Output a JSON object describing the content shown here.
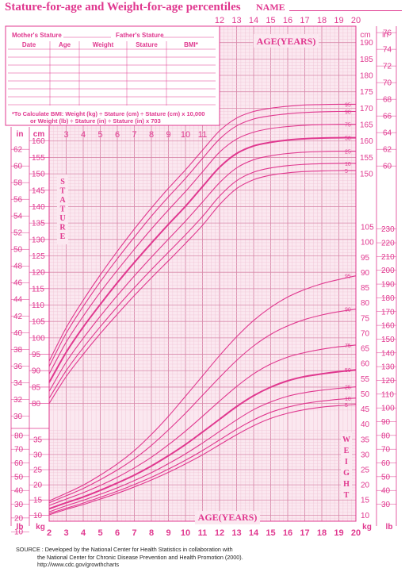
{
  "header": {
    "title": "Stature-for-age and Weight-for-age percentiles",
    "name_label": "NAME"
  },
  "record_table": {
    "mother_label": "Mother's Stature",
    "father_label": "Father's Stature",
    "columns": [
      "Date",
      "Age",
      "Weight",
      "Stature",
      "BMI*"
    ],
    "bmi_note_line1": "*To Calculate BMI: Weight (kg) ÷ Stature (cm) ÷ Stature (cm) x 10,000",
    "bmi_note_line2": "or Weight (lb) ÷ Stature (in) ÷ Stature (in) x 703"
  },
  "labels": {
    "age_years": "AGE(YEARS)",
    "stature_word": "STATURE",
    "weight_word": "WEIGHT",
    "unit_cm": "cm",
    "unit_in": "in",
    "unit_kg": "kg",
    "unit_lb": "lb"
  },
  "source": {
    "line1": "SOURCE : Developed by the National Center for Health Statistics in collaboration with",
    "line2": "the National Center for Chronic Disease Prevention and Health Promotion (2000).",
    "line3": "http://www.cdc.gov/growthcharts"
  },
  "chart_data": [
    {
      "type": "line",
      "title": "Stature-for-age percentiles",
      "xlabel": "AGE(YEARS)",
      "ylabel": "STATURE",
      "x_unit": "years",
      "y_unit": "cm",
      "xlim": [
        2,
        20
      ],
      "ylim": [
        77,
        195
      ],
      "grid": true,
      "x_ticks_bottom": [
        "2",
        "3",
        "4",
        "5",
        "6",
        "7",
        "8",
        "9",
        "10",
        "11",
        "12",
        "13",
        "14",
        "15",
        "16",
        "17",
        "18",
        "19",
        "20"
      ],
      "x_ticks_top_left": [
        "3",
        "4",
        "5",
        "6",
        "7",
        "8",
        "9",
        "10",
        "11"
      ],
      "x_ticks_top_right": [
        "12",
        "13",
        "14",
        "15",
        "16",
        "17",
        "18",
        "19",
        "20"
      ],
      "y_ticks_cm_left": [
        "80",
        "85",
        "90",
        "95",
        "100",
        "105",
        "110",
        "115",
        "120",
        "125",
        "130",
        "135",
        "140",
        "145",
        "150",
        "155",
        "160"
      ],
      "y_ticks_in_left": [
        "30",
        "32",
        "34",
        "36",
        "38",
        "40",
        "42",
        "44",
        "46",
        "48",
        "50",
        "52",
        "54",
        "56",
        "58",
        "60",
        "62"
      ],
      "y_ticks_cm_right": [
        "150",
        "155",
        "160",
        "165",
        "170",
        "175",
        "180",
        "185",
        "190"
      ],
      "y_ticks_in_right": [
        "60",
        "62",
        "64",
        "66",
        "68",
        "70",
        "72",
        "74",
        "76"
      ],
      "x": [
        2,
        3,
        4,
        5,
        6,
        7,
        8,
        9,
        10,
        11,
        12,
        13,
        14,
        15,
        16,
        17,
        18,
        19,
        20
      ],
      "series": [
        {
          "name": "95",
          "values": [
            92.9,
            103.1,
            111.5,
            119.2,
            126.4,
            133.2,
            139.6,
            145.6,
            151.2,
            157.2,
            163.1,
            167.0,
            169.0,
            170.0,
            170.6,
            171.0,
            171.1,
            171.2,
            171.2
          ]
        },
        {
          "name": "90",
          "values": [
            91.3,
            101.4,
            109.6,
            117.1,
            124.1,
            130.7,
            137.1,
            143.0,
            148.6,
            154.7,
            160.6,
            164.6,
            166.7,
            167.7,
            168.3,
            168.7,
            168.9,
            169.0,
            169.0
          ]
        },
        {
          "name": "75",
          "values": [
            89.0,
            98.7,
            106.6,
            113.9,
            120.6,
            127.0,
            133.2,
            139.0,
            144.6,
            150.6,
            156.6,
            160.6,
            162.7,
            163.8,
            164.4,
            164.8,
            165.0,
            165.1,
            165.1
          ]
        },
        {
          "name": "50",
          "values": [
            86.4,
            95.6,
            103.3,
            110.2,
            116.8,
            123.0,
            128.9,
            134.6,
            140.1,
            146.1,
            152.0,
            156.2,
            158.5,
            159.6,
            160.3,
            160.7,
            160.9,
            161.0,
            161.0
          ]
        },
        {
          "name": "25",
          "values": [
            83.7,
            92.6,
            99.9,
            106.6,
            112.9,
            118.9,
            124.6,
            130.1,
            135.6,
            141.4,
            147.3,
            151.8,
            154.3,
            155.5,
            156.2,
            156.6,
            156.8,
            156.9,
            156.9
          ]
        },
        {
          "name": "10",
          "values": [
            81.6,
            90.0,
            97.0,
            103.4,
            109.5,
            115.3,
            120.8,
            126.1,
            131.4,
            137.0,
            143.2,
            147.9,
            150.5,
            151.8,
            152.5,
            152.9,
            153.1,
            153.2,
            153.2
          ]
        },
        {
          "name": "5",
          "values": [
            80.0,
            88.2,
            95.0,
            101.3,
            107.2,
            112.9,
            118.3,
            123.5,
            128.8,
            134.3,
            140.6,
            145.5,
            148.2,
            149.6,
            150.3,
            150.7,
            150.9,
            151.0,
            151.0
          ]
        }
      ]
    },
    {
      "type": "line",
      "title": "Weight-for-age percentiles",
      "xlabel": "AGE(YEARS)",
      "ylabel": "WEIGHT",
      "x_unit": "years",
      "y_unit": "kg",
      "xlim": [
        2,
        20
      ],
      "ylim": [
        8,
        110
      ],
      "grid": true,
      "y_ticks_kg_left": [
        "10",
        "15",
        "20",
        "25",
        "30",
        "35"
      ],
      "y_ticks_lb_left": [
        "10",
        "20",
        "30",
        "40",
        "50",
        "60",
        "70",
        "80"
      ],
      "y_ticks_kg_right": [
        "10",
        "15",
        "20",
        "25",
        "30",
        "35",
        "40",
        "45",
        "50",
        "55",
        "60",
        "65",
        "70",
        "75",
        "80",
        "85",
        "90",
        "95",
        "100",
        "105"
      ],
      "y_ticks_lb_right": [
        "30",
        "40",
        "50",
        "60",
        "70",
        "80",
        "90",
        "100",
        "110",
        "120",
        "130",
        "140",
        "150",
        "160",
        "170",
        "180",
        "190",
        "200",
        "210",
        "220",
        "230"
      ],
      "x": [
        2,
        3,
        4,
        5,
        6,
        7,
        8,
        9,
        10,
        11,
        12,
        13,
        14,
        15,
        16,
        17,
        18,
        19,
        20
      ],
      "series": [
        {
          "name": "95",
          "values": [
            14.7,
            17.2,
            19.9,
            23.2,
            26.9,
            31.3,
            36.6,
            42.6,
            49.2,
            55.9,
            62.6,
            68.8,
            74.2,
            78.5,
            81.9,
            84.4,
            86.3,
            87.7,
            88.9
          ]
        },
        {
          "name": "90",
          "values": [
            14.1,
            16.4,
            18.8,
            21.7,
            24.9,
            28.6,
            33.0,
            38.1,
            43.6,
            49.5,
            55.4,
            61.0,
            65.8,
            69.6,
            72.4,
            74.5,
            76.0,
            77.1,
            77.9
          ]
        },
        {
          "name": "75",
          "values": [
            13.2,
            15.3,
            17.4,
            19.8,
            22.5,
            25.6,
            29.1,
            33.2,
            37.7,
            42.6,
            47.6,
            52.4,
            56.6,
            59.8,
            62.1,
            63.6,
            64.7,
            65.5,
            66.1
          ]
        },
        {
          "name": "50",
          "values": [
            12.1,
            14.1,
            16.0,
            18.2,
            20.6,
            23.2,
            26.2,
            29.6,
            33.3,
            37.4,
            41.6,
            45.8,
            49.4,
            52.2,
            54.3,
            55.7,
            56.6,
            57.3,
            57.9
          ]
        },
        {
          "name": "25",
          "values": [
            11.1,
            13.1,
            14.9,
            16.9,
            19.0,
            21.4,
            24.0,
            27.0,
            30.2,
            33.8,
            37.6,
            41.4,
            44.8,
            47.3,
            49.2,
            50.4,
            51.2,
            51.8,
            52.3
          ]
        },
        {
          "name": "10",
          "values": [
            10.5,
            12.3,
            14.0,
            15.9,
            17.9,
            20.1,
            22.5,
            25.2,
            28.1,
            31.3,
            34.8,
            38.3,
            41.4,
            43.9,
            45.6,
            46.8,
            47.6,
            48.2,
            48.6
          ]
        },
        {
          "name": "5",
          "values": [
            10.1,
            11.9,
            13.5,
            15.3,
            17.2,
            19.3,
            21.6,
            24.1,
            26.9,
            29.9,
            33.2,
            36.5,
            39.5,
            41.9,
            43.6,
            44.8,
            45.6,
            46.1,
            46.5
          ]
        }
      ]
    }
  ],
  "colors": {
    "primary": "#e0388f",
    "grid_major": "#d98aab",
    "grid_minor": "#f0c4d6",
    "band": "#fbe8f0",
    "table_bg": "#ffffff"
  }
}
